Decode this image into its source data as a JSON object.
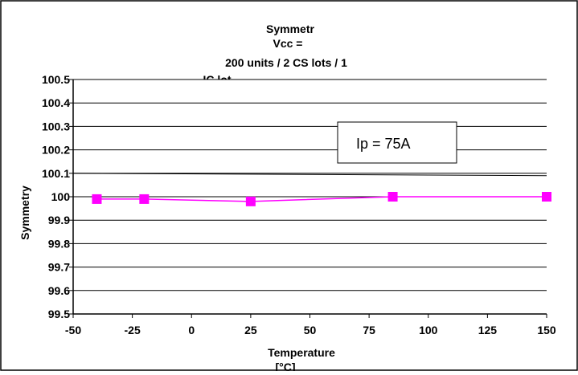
{
  "chart_data": {
    "type": "line",
    "title_lines": [
      "Symmetr",
      "Vcc =",
      "200 units / 2 CS lots / 1",
      "IC lot"
    ],
    "xlabel_lines": [
      "Temperature",
      "[°C]"
    ],
    "ylabel": "Symmetry",
    "xlim": [
      -50,
      150
    ],
    "ylim": [
      99.5,
      100.5
    ],
    "x_ticks": [
      "-50",
      "-25",
      "0",
      "25",
      "50",
      "75",
      "100",
      "125",
      "150"
    ],
    "y_ticks": [
      "100.5",
      "100.4",
      "100.3",
      "100.2",
      "100.1",
      "100",
      "99.9",
      "99.8",
      "99.7",
      "99.6",
      "99.5"
    ],
    "grid": true,
    "legend": "none",
    "annotation": "Ip = 75A",
    "series": [
      {
        "color": "#ff00ff",
        "marker": "square",
        "x": [
          -40,
          -20,
          25,
          85,
          150
        ],
        "y": [
          99.99,
          99.99,
          99.98,
          100.0,
          100.0
        ]
      }
    ],
    "reference_line": {
      "color": "#000000",
      "x": [
        -50,
        150
      ],
      "y": [
        100.1,
        100.09
      ]
    }
  }
}
